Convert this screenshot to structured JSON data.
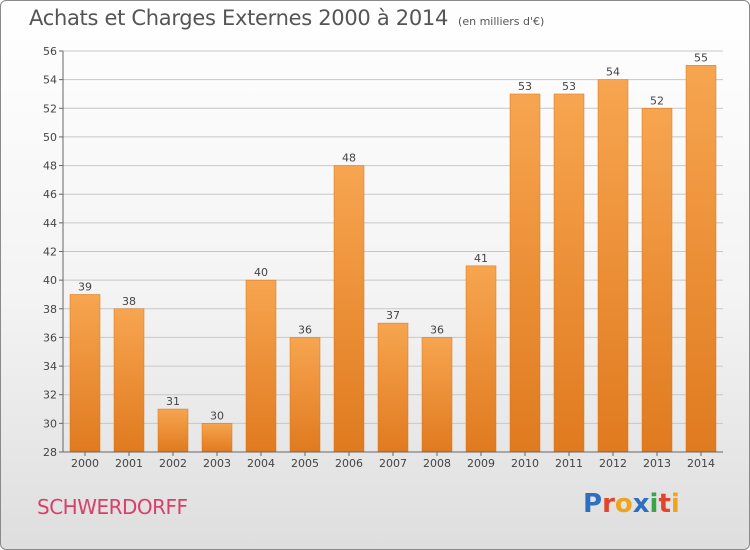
{
  "title": "Achats et Charges Externes 2000 à 2014",
  "subtitle": "(en milliers d'€)",
  "commune": "SCHWERDORFF",
  "logo_text": "Proxiti",
  "colors": {
    "bar_light": "#f7a550",
    "bar_dark": "#e07a1f",
    "commune": "#d8406a",
    "logo": [
      "#2f6fc0",
      "#e2452b",
      "#f0a41e",
      "#2f6fc0",
      "#3aa548",
      "#e2452b",
      "#f0a41e"
    ]
  },
  "chart_data": {
    "type": "bar",
    "categories": [
      "2000",
      "2001",
      "2002",
      "2003",
      "2004",
      "2005",
      "2006",
      "2007",
      "2008",
      "2009",
      "2010",
      "2011",
      "2012",
      "2013",
      "2014"
    ],
    "values": [
      39,
      38,
      31,
      30,
      40,
      36,
      48,
      37,
      36,
      41,
      53,
      53,
      54,
      52,
      55
    ],
    "ylim": [
      28,
      56
    ],
    "yticks": [
      28,
      30,
      32,
      34,
      36,
      38,
      40,
      42,
      44,
      46,
      48,
      50,
      52,
      54,
      56
    ],
    "grid": true,
    "xlabel": "",
    "ylabel": ""
  }
}
